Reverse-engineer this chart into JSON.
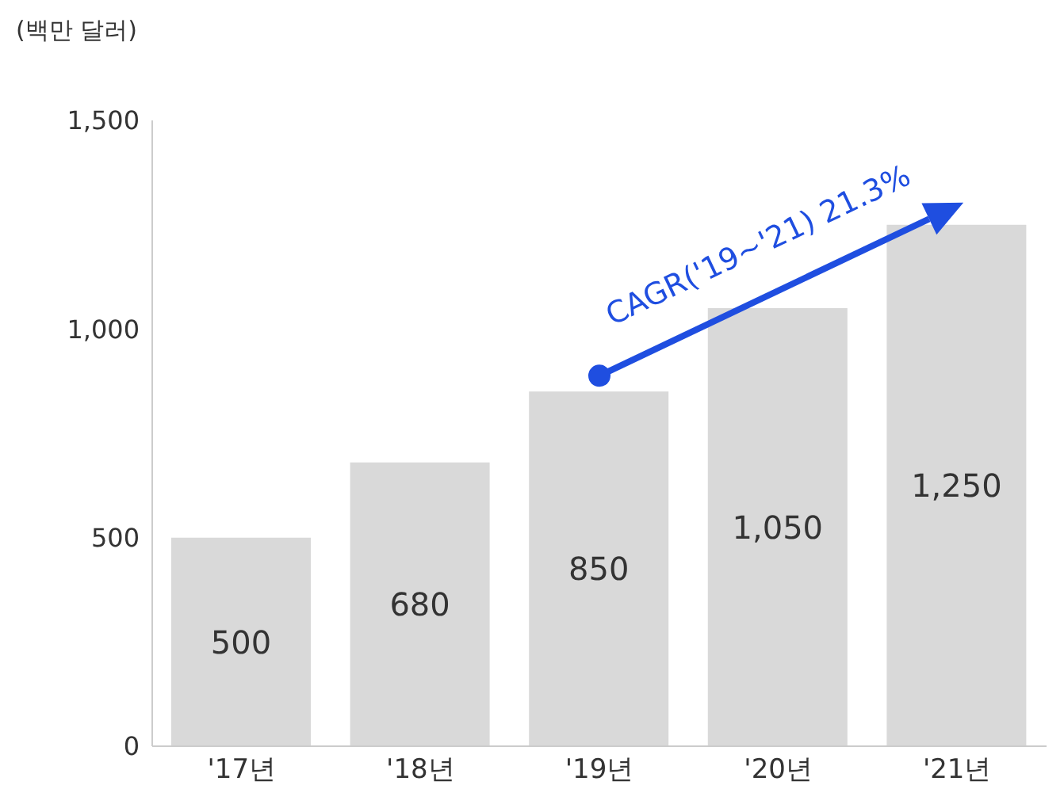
{
  "chart_data": {
    "type": "bar",
    "ylabel": "(백만 달러)",
    "categories": [
      "'17년",
      "'18년",
      "'19년",
      "'20년",
      "'21년"
    ],
    "values": [
      500,
      680,
      850,
      1050,
      1250
    ],
    "color": "#d9d9d9",
    "ylim": [
      0,
      1500
    ],
    "yticks": [
      0,
      {
        "value": 500,
        "label": "500"
      },
      {
        "value": 1000,
        "label": "1,000"
      },
      {
        "value": 1500,
        "label": "1,500"
      }
    ],
    "value_labels": [
      "500",
      "680",
      "850",
      "1,050",
      "1,250"
    ],
    "grid": false,
    "annotations": [
      {
        "text": "CAGR('19~'21) 21.3%",
        "x": "'19년",
        "y": 850
      }
    ]
  }
}
